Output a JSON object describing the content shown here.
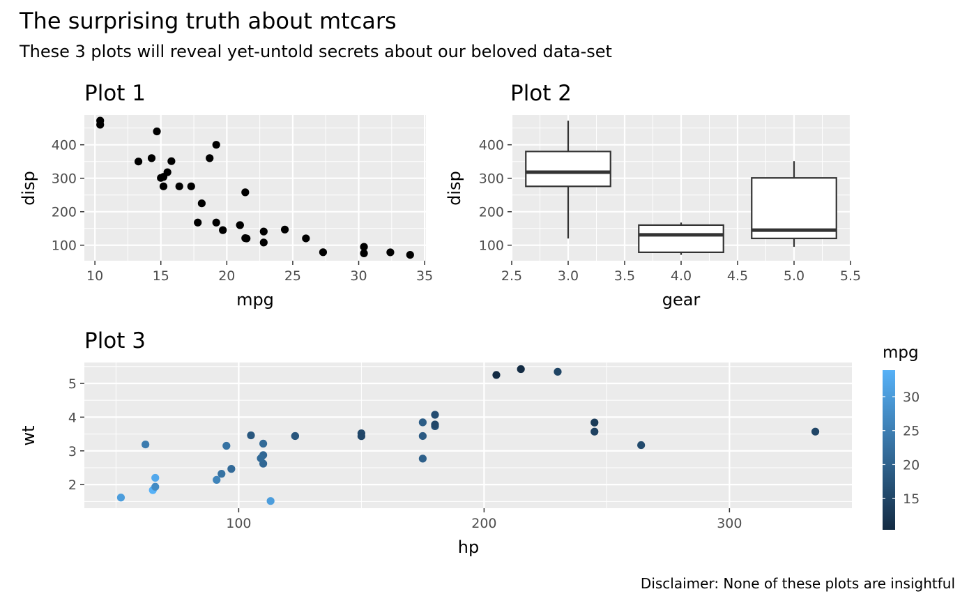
{
  "title": "The surprising truth about mtcars",
  "subtitle": "These 3 plots will reveal yet-untold secrets about our beloved data-set",
  "caption": "Disclaimer: None of these plots are insightful",
  "colors": {
    "panel_bg": "#ebebeb",
    "grid": "#ffffff",
    "point": "#000000",
    "box_stroke": "#333333",
    "tick_text": "#4d4d4d",
    "gradient_low": "#132B43",
    "gradient_high": "#56B1F7"
  },
  "chart_data": [
    {
      "type": "scatter",
      "title": "Plot 1",
      "xlabel": "mpg",
      "ylabel": "disp",
      "xlim": [
        9.2,
        35.1
      ],
      "ylim": [
        53.6,
        488.9
      ],
      "xticks": [
        10,
        15,
        20,
        25,
        30,
        35
      ],
      "yticks": [
        100,
        200,
        300,
        400
      ],
      "xtick_labels": [
        "10",
        "15",
        "20",
        "25",
        "30",
        "35"
      ],
      "ytick_labels": [
        "100",
        "200",
        "300",
        "400"
      ],
      "points": [
        [
          21.0,
          160
        ],
        [
          21.0,
          160
        ],
        [
          22.8,
          108
        ],
        [
          21.4,
          258
        ],
        [
          18.7,
          360
        ],
        [
          18.1,
          225
        ],
        [
          14.3,
          360
        ],
        [
          24.4,
          146.7
        ],
        [
          22.8,
          140.8
        ],
        [
          19.2,
          167.6
        ],
        [
          17.8,
          167.6
        ],
        [
          16.4,
          275.8
        ],
        [
          17.3,
          275.8
        ],
        [
          15.2,
          275.8
        ],
        [
          10.4,
          472
        ],
        [
          10.4,
          460
        ],
        [
          14.7,
          440
        ],
        [
          32.4,
          78.7
        ],
        [
          30.4,
          75.7
        ],
        [
          33.9,
          71.1
        ],
        [
          21.5,
          120.1
        ],
        [
          15.5,
          318
        ],
        [
          15.2,
          304
        ],
        [
          13.3,
          350
        ],
        [
          19.2,
          400
        ],
        [
          27.3,
          79
        ],
        [
          26.0,
          120.3
        ],
        [
          30.4,
          95.1
        ],
        [
          15.8,
          351
        ],
        [
          19.7,
          145
        ],
        [
          15.0,
          301
        ],
        [
          21.4,
          121
        ]
      ]
    },
    {
      "type": "box",
      "title": "Plot 2",
      "xlabel": "gear",
      "ylabel": "disp",
      "xlim": [
        2.5,
        5.5
      ],
      "ylim": [
        53.6,
        488.9
      ],
      "xticks": [
        2.5,
        3.0,
        3.5,
        4.0,
        4.5,
        5.0,
        5.5
      ],
      "yticks": [
        100,
        200,
        300,
        400
      ],
      "xtick_labels": [
        "2.5",
        "3.0",
        "3.5",
        "4.0",
        "4.5",
        "5.0",
        "5.5"
      ],
      "ytick_labels": [
        "100",
        "200",
        "300",
        "400"
      ],
      "box_width": 0.75,
      "boxes": [
        {
          "x": 3,
          "min": 120.1,
          "q1": 275.8,
          "median": 318,
          "q3": 380,
          "max": 472
        },
        {
          "x": 4,
          "min": 71.1,
          "q1": 78.8,
          "median": 130.9,
          "q3": 160,
          "max": 167.6
        },
        {
          "x": 5,
          "min": 95.1,
          "q1": 120.3,
          "median": 145,
          "q3": 301,
          "max": 351
        }
      ]
    },
    {
      "type": "scatter",
      "title": "Plot 3",
      "xlabel": "hp",
      "ylabel": "wt",
      "color_by": "mpg",
      "xlim": [
        37.1,
        349.9
      ],
      "ylim": [
        1.3,
        5.62
      ],
      "xticks": [
        100,
        200,
        300
      ],
      "yticks": [
        2,
        3,
        4,
        5
      ],
      "xtick_labels": [
        "100",
        "200",
        "300"
      ],
      "ytick_labels": [
        "2",
        "3",
        "4",
        "5"
      ],
      "legend": {
        "title": "mpg",
        "range": [
          10.4,
          33.9
        ],
        "ticks": [
          15,
          20,
          25,
          30
        ],
        "tick_labels": [
          "15",
          "20",
          "25",
          "30"
        ],
        "placement": "right"
      },
      "points": [
        [
          110,
          2.62,
          21.0
        ],
        [
          110,
          2.875,
          21.0
        ],
        [
          93,
          2.32,
          22.8
        ],
        [
          110,
          3.215,
          21.4
        ],
        [
          175,
          3.44,
          18.7
        ],
        [
          105,
          3.46,
          18.1
        ],
        [
          245,
          3.57,
          14.3
        ],
        [
          62,
          3.19,
          24.4
        ],
        [
          95,
          3.15,
          22.8
        ],
        [
          123,
          3.44,
          19.2
        ],
        [
          123,
          3.44,
          17.8
        ],
        [
          180,
          4.07,
          16.4
        ],
        [
          180,
          3.73,
          17.3
        ],
        [
          180,
          3.78,
          15.2
        ],
        [
          205,
          5.25,
          10.4
        ],
        [
          215,
          5.424,
          10.4
        ],
        [
          230,
          5.345,
          14.7
        ],
        [
          66,
          2.2,
          32.4
        ],
        [
          52,
          1.615,
          30.4
        ],
        [
          65,
          1.835,
          33.9
        ],
        [
          97,
          2.465,
          21.5
        ],
        [
          150,
          3.52,
          15.5
        ],
        [
          150,
          3.435,
          15.2
        ],
        [
          245,
          3.84,
          13.3
        ],
        [
          175,
          3.845,
          19.2
        ],
        [
          66,
          1.935,
          27.3
        ],
        [
          91,
          2.14,
          26.0
        ],
        [
          113,
          1.513,
          30.4
        ],
        [
          264,
          3.17,
          15.8
        ],
        [
          175,
          2.77,
          19.7
        ],
        [
          335,
          3.57,
          15.0
        ],
        [
          109,
          2.78,
          21.4
        ]
      ]
    }
  ]
}
